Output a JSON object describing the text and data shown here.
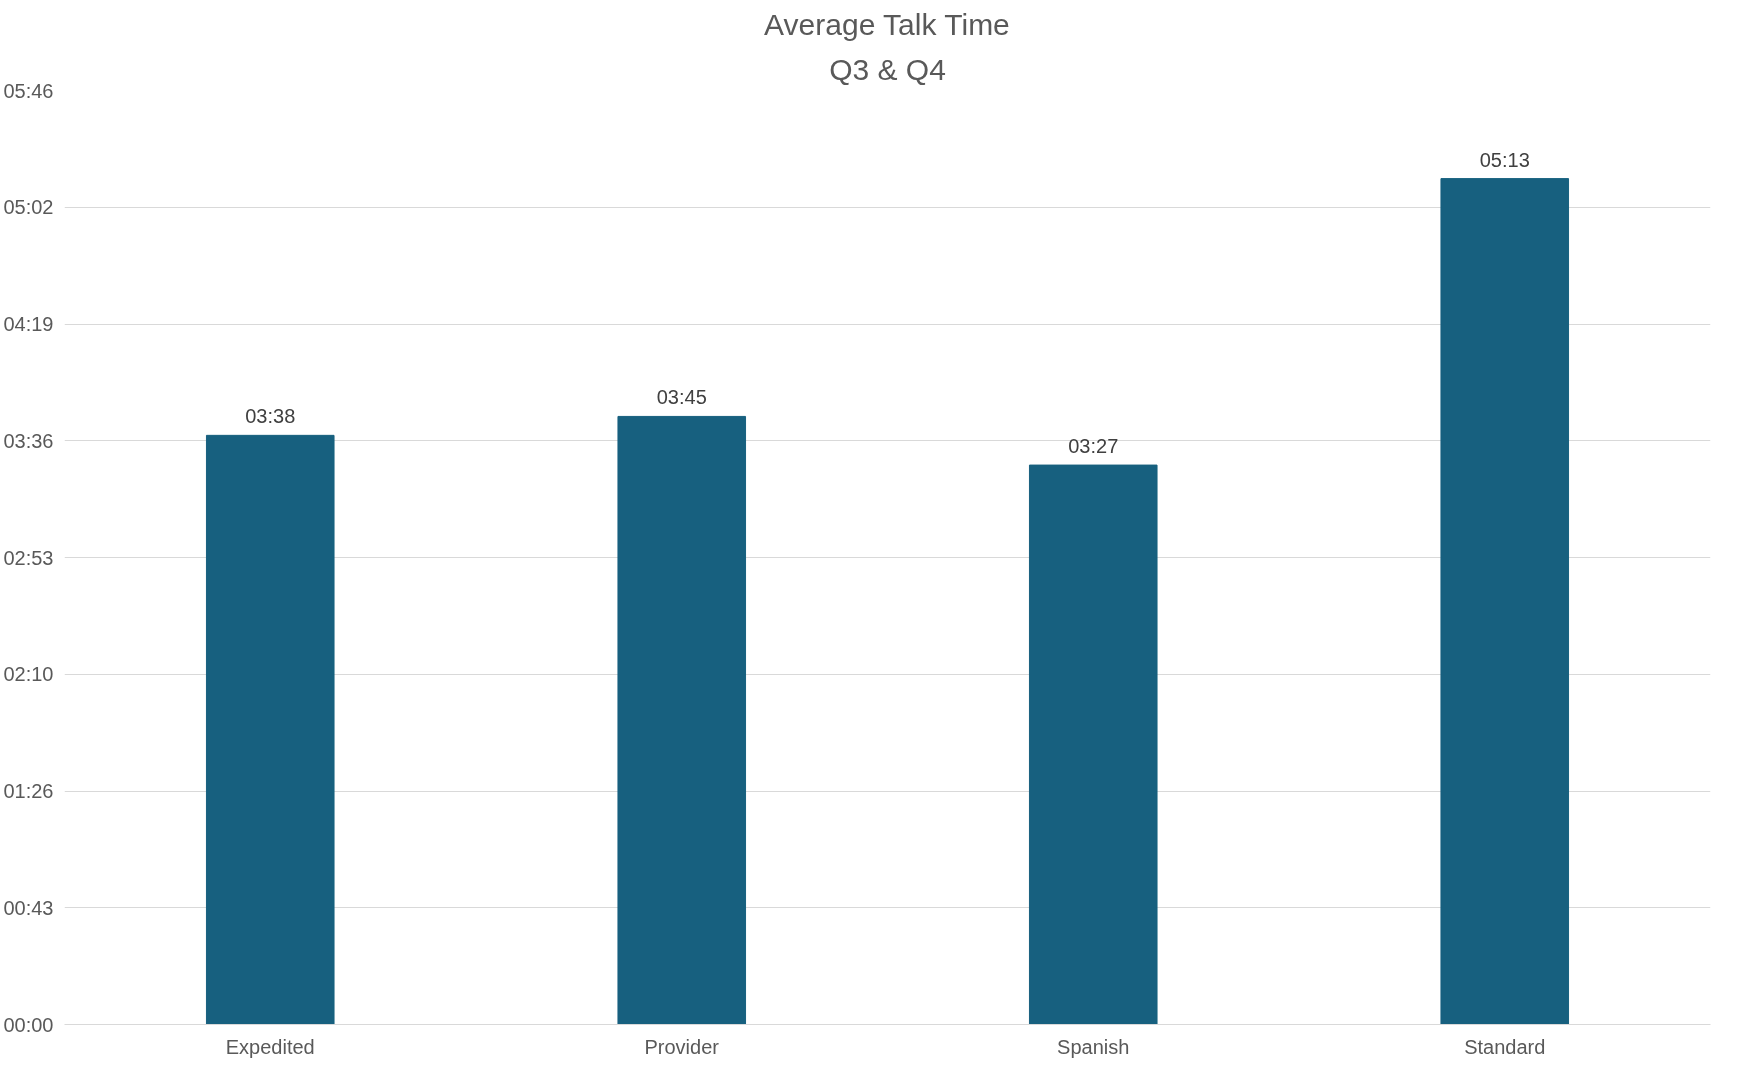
{
  "chart_data": {
    "type": "bar",
    "title": "Average Talk Time",
    "subtitle": "Q3 & Q4",
    "categories": [
      "Expedited",
      "Provider",
      "Spanish",
      "Standard"
    ],
    "values": [
      218,
      225,
      207,
      313
    ],
    "value_labels": [
      "03:38",
      "03:45",
      "03:27",
      "05:13"
    ],
    "color": "#17607f",
    "ylim": [
      0,
      345.6
    ],
    "yticks": [
      {
        "value": 0,
        "label": "00:00"
      },
      {
        "value": 43.2,
        "label": "00:43"
      },
      {
        "value": 86.4,
        "label": "01:26"
      },
      {
        "value": 129.6,
        "label": "02:10"
      },
      {
        "value": 172.8,
        "label": "02:53"
      },
      {
        "value": 216,
        "label": "03:36"
      },
      {
        "value": 259.2,
        "label": "04:19"
      },
      {
        "value": 302.4,
        "label": "05:02"
      },
      {
        "value": 345.6,
        "label": "05:46"
      }
    ],
    "grid": "y"
  }
}
